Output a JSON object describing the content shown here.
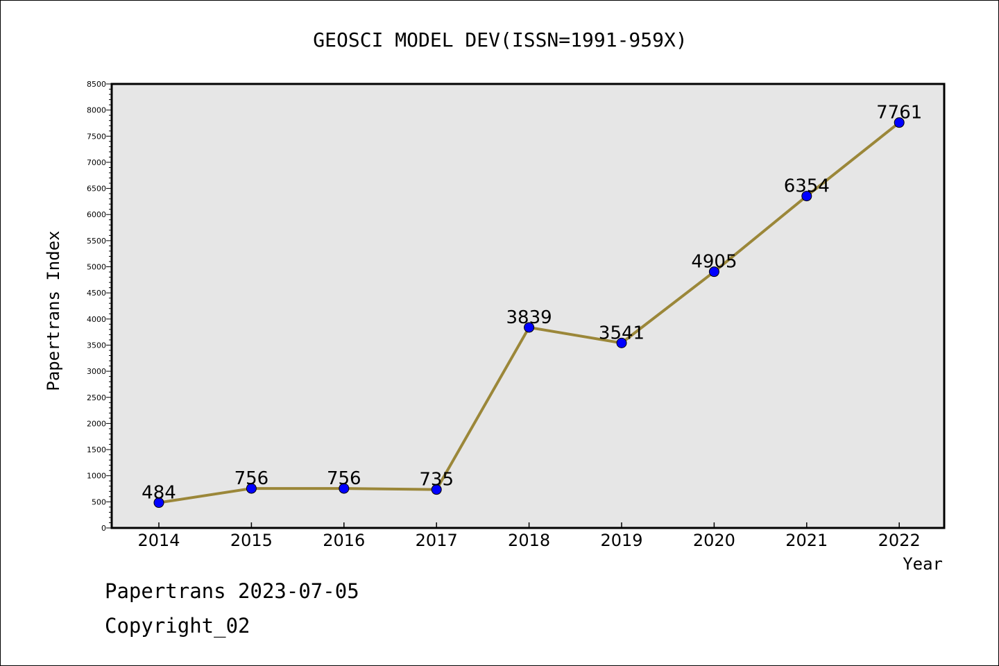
{
  "chart_data": {
    "type": "line",
    "title": "GEOSCI MODEL DEV(ISSN=1991-959X)",
    "xlabel": "Year",
    "ylabel": "Papertrans Index",
    "categories": [
      "2014",
      "2015",
      "2016",
      "2017",
      "2018",
      "2019",
      "2020",
      "2021",
      "2022"
    ],
    "series": [
      {
        "values": [
          484,
          756,
          756,
          735,
          3839,
          3541,
          4905,
          6354,
          7761
        ]
      }
    ],
    "data_labels": [
      "484",
      "756",
      "756",
      "735",
      "3839",
      "3541",
      "4905",
      "6354",
      "7761"
    ],
    "ylim": [
      0,
      8500
    ],
    "yticks": [
      "0",
      "500",
      "1000",
      "1500",
      "2000",
      "2500",
      "3000",
      "3500",
      "4000",
      "4500",
      "5000",
      "5500",
      "6000",
      "6500",
      "7000",
      "7500",
      "8000",
      "8500"
    ],
    "grid": false,
    "legend": "none",
    "colors": {
      "line": "#9b8739",
      "marker": "#0000ff",
      "plot_background": "#e6e6e6"
    }
  },
  "footer": {
    "line1": "Papertrans 2023-07-05",
    "line2": "Copyright_02"
  }
}
